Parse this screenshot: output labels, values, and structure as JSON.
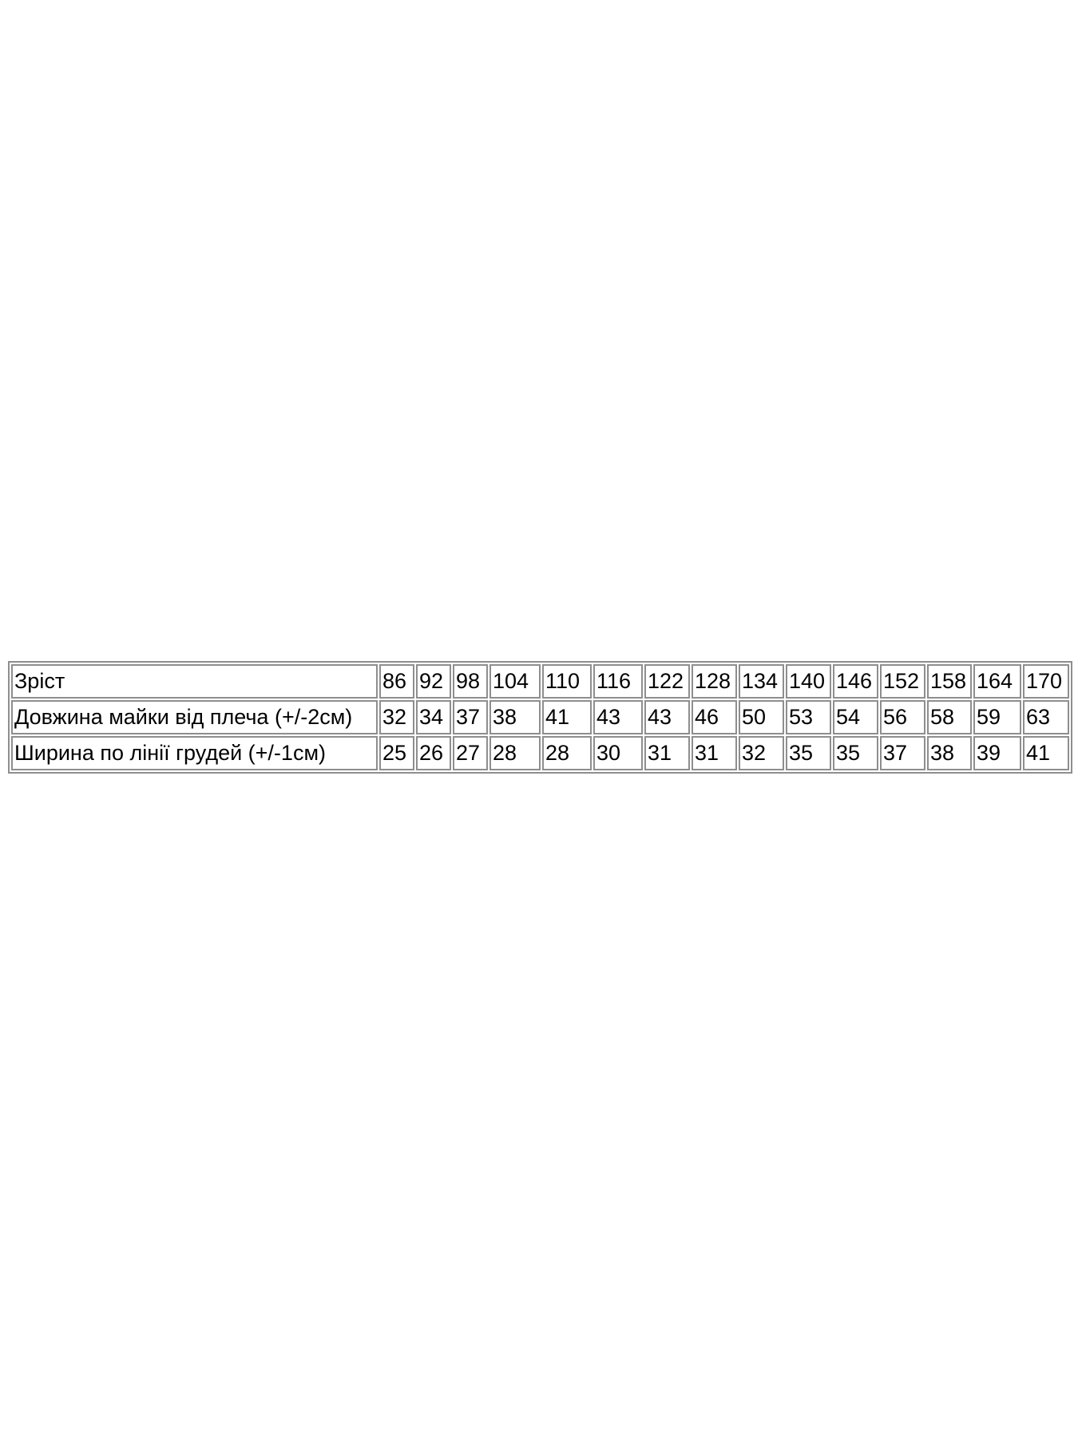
{
  "page": {
    "background_color": "#ffffff",
    "text_color": "#000000"
  },
  "table": {
    "border_color": "#8e8e8e",
    "rows": [
      {
        "label": "Зріст",
        "values": [
          86,
          92,
          98,
          104,
          110,
          116,
          122,
          128,
          134,
          140,
          146,
          152,
          158,
          164,
          170
        ]
      },
      {
        "label": "Довжина майки від плеча (+/-2см)",
        "values": [
          32,
          34,
          37,
          38,
          41,
          43,
          43,
          46,
          50,
          53,
          54,
          56,
          58,
          59,
          63
        ]
      },
      {
        "label": "Ширина по лінії грудей (+/-1см)",
        "values": [
          25,
          26,
          27,
          28,
          28,
          30,
          31,
          31,
          32,
          35,
          35,
          37,
          38,
          39,
          41
        ]
      }
    ]
  }
}
